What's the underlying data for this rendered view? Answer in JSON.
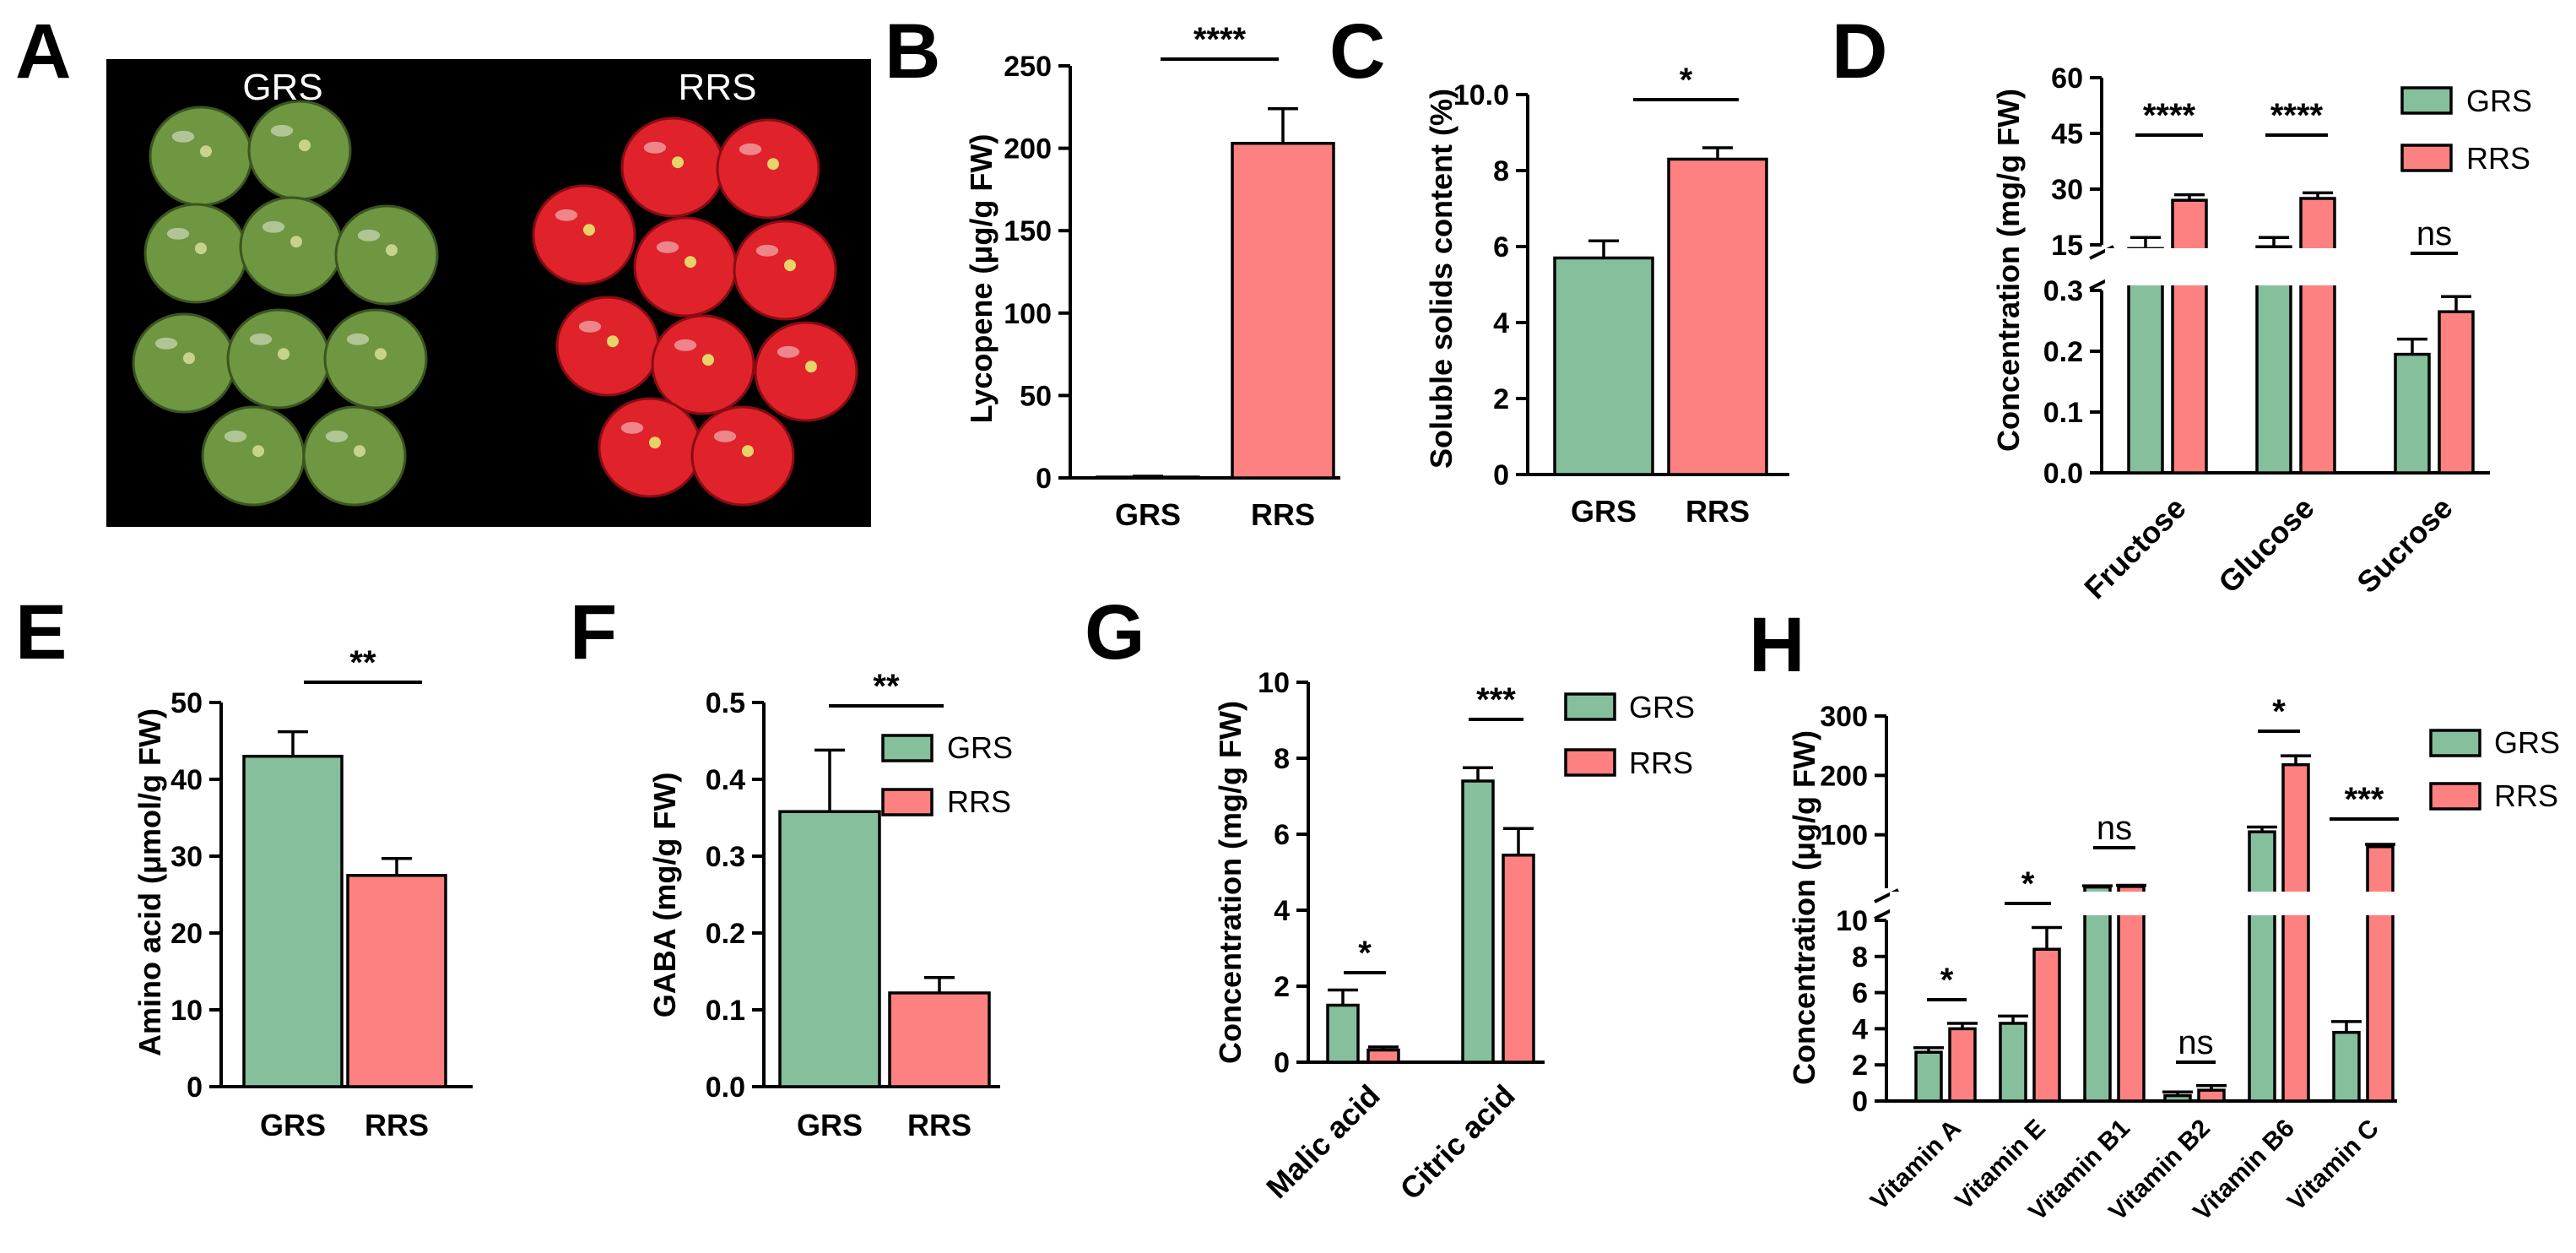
{
  "colors": {
    "GRS": "#86bf9c",
    "RRS": "#fd8180",
    "photo_bg": "#000000",
    "green_fruit": "#6f9640",
    "red_fruit": "#e0222a"
  },
  "photo": {
    "letter": "A",
    "labels": [
      "GRS",
      "RRS"
    ]
  },
  "legend_labels": [
    "GRS",
    "RRS"
  ],
  "chart_data": [
    {
      "panel": "B",
      "type": "bar",
      "ylabel": "Lycopene (μg/g FW)",
      "categories": [
        "GRS",
        "RRS"
      ],
      "values": [
        0.5,
        203
      ],
      "errors": [
        0.5,
        21
      ],
      "ylim": [
        0,
        250
      ],
      "ticks": [
        0,
        50,
        100,
        150,
        200,
        250
      ],
      "significance": [
        "****"
      ]
    },
    {
      "panel": "C",
      "type": "bar",
      "ylabel": "Soluble solids content (%)",
      "categories": [
        "GRS",
        "RRS"
      ],
      "values": [
        5.7,
        8.3
      ],
      "errors": [
        0.45,
        0.3
      ],
      "ylim": [
        0,
        10
      ],
      "ticks": [
        "0",
        "2",
        "4",
        "6",
        "8",
        "10.0"
      ],
      "significance": [
        "*"
      ]
    },
    {
      "panel": "D",
      "type": "bar",
      "ylabel": "Concentration (mg/g FW)",
      "categories": [
        "Fructose",
        "Glucose",
        "Sucrose"
      ],
      "series": [
        {
          "name": "GRS",
          "values": [
            14,
            14.5,
            0.195
          ],
          "errors": [
            3,
            2.5,
            0.025
          ]
        },
        {
          "name": "RRS",
          "values": [
            27,
            27.5,
            0.265
          ],
          "errors": [
            1.5,
            1.5,
            0.025
          ]
        }
      ],
      "y_break": {
        "lower": [
          0,
          0.3
        ],
        "upper": [
          15,
          60
        ]
      },
      "ticks_lower": [
        "0.0",
        "0.1",
        "0.2",
        "0.3"
      ],
      "ticks_upper": [
        "15",
        "30",
        "45",
        "60"
      ],
      "significance": [
        "****",
        "****",
        "ns"
      ]
    },
    {
      "panel": "E",
      "type": "bar",
      "ylabel": "Amino acid (μmol/g FW)",
      "categories": [
        "GRS",
        "RRS"
      ],
      "values": [
        43,
        27.5
      ],
      "errors": [
        3.2,
        2.2
      ],
      "ylim": [
        0,
        50
      ],
      "ticks": [
        0,
        10,
        20,
        30,
        40,
        50
      ],
      "significance": [
        "**"
      ]
    },
    {
      "panel": "F",
      "type": "bar",
      "ylabel": "GABA (mg/g FW)",
      "categories": [
        "GRS",
        "RRS"
      ],
      "values": [
        0.358,
        0.122
      ],
      "errors": [
        0.08,
        0.02
      ],
      "ylim": [
        0,
        0.5
      ],
      "ticks": [
        "0.0",
        "0.1",
        "0.2",
        "0.3",
        "0.4",
        "0.5"
      ],
      "significance": [
        "**"
      ]
    },
    {
      "panel": "G",
      "type": "bar",
      "ylabel": "Concentration (mg/g FW)",
      "categories": [
        "Malic acid",
        "Citric acid"
      ],
      "series": [
        {
          "name": "GRS",
          "values": [
            1.5,
            7.4
          ],
          "errors": [
            0.4,
            0.35
          ]
        },
        {
          "name": "RRS",
          "values": [
            0.32,
            5.45
          ],
          "errors": [
            0.08,
            0.7
          ]
        }
      ],
      "ylim": [
        0,
        10
      ],
      "ticks": [
        0,
        2,
        4,
        6,
        8,
        10
      ],
      "significance": [
        "*",
        "***"
      ]
    },
    {
      "panel": "H",
      "type": "bar",
      "ylabel": "Concentration (μg/g FW)",
      "categories": [
        "Vitamin A",
        "Vitamin E",
        "Vitamin B1",
        "Vitamin B2",
        "Vitamin B6",
        "Vitamin C"
      ],
      "series": [
        {
          "name": "GRS",
          "values": [
            2.7,
            4.3,
            12,
            0.3,
            105,
            3.8
          ],
          "errors": [
            0.25,
            0.4,
            2,
            0.2,
            8,
            0.6
          ]
        },
        {
          "name": "RRS",
          "values": [
            4.0,
            8.4,
            13,
            0.6,
            218,
            80
          ],
          "errors": [
            0.3,
            1.2,
            2,
            0.25,
            15,
            4
          ]
        }
      ],
      "y_break": {
        "lower": [
          0,
          10
        ],
        "upper": [
          10,
          300
        ]
      },
      "ticks_lower": [
        0,
        2,
        4,
        6,
        8,
        10
      ],
      "ticks_upper": [
        100,
        200,
        300
      ],
      "significance": [
        "*",
        "*",
        "ns",
        "ns",
        "*",
        "***"
      ]
    }
  ]
}
